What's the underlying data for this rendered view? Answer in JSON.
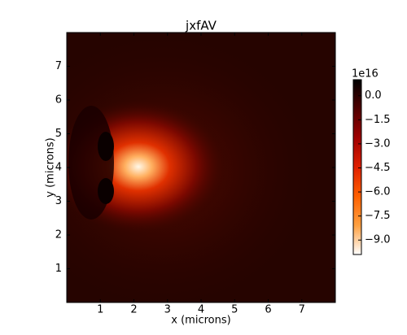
{
  "chart_data": {
    "type": "heatmap",
    "title": "jxfAV",
    "xlabel": "x (microns)",
    "ylabel": "y (microns)",
    "xlim": [
      0,
      8
    ],
    "xticks": [
      1,
      2,
      3,
      4,
      5,
      6,
      7
    ],
    "ylim": [
      0,
      8
    ],
    "yticks": [
      1,
      2,
      3,
      4,
      5,
      6,
      7
    ],
    "colorbar": {
      "offset_label": "1e16",
      "clim": [
        -9.9,
        1.0
      ],
      "ticks": [
        {
          "value": 0,
          "label": "0.0"
        },
        {
          "value": -1.5,
          "label": "−1.5"
        },
        {
          "value": -3,
          "label": "−3.0"
        },
        {
          "value": -4.5,
          "label": "−4.5"
        },
        {
          "value": -6,
          "label": "−6.0"
        },
        {
          "value": -7.5,
          "label": "−7.5"
        },
        {
          "value": -9,
          "label": "−9.0"
        }
      ],
      "colors": [
        "#ffffff",
        "#ffa040",
        "#ff6000",
        "#e02000",
        "#a00000",
        "#500000",
        "#000000"
      ]
    }
  }
}
